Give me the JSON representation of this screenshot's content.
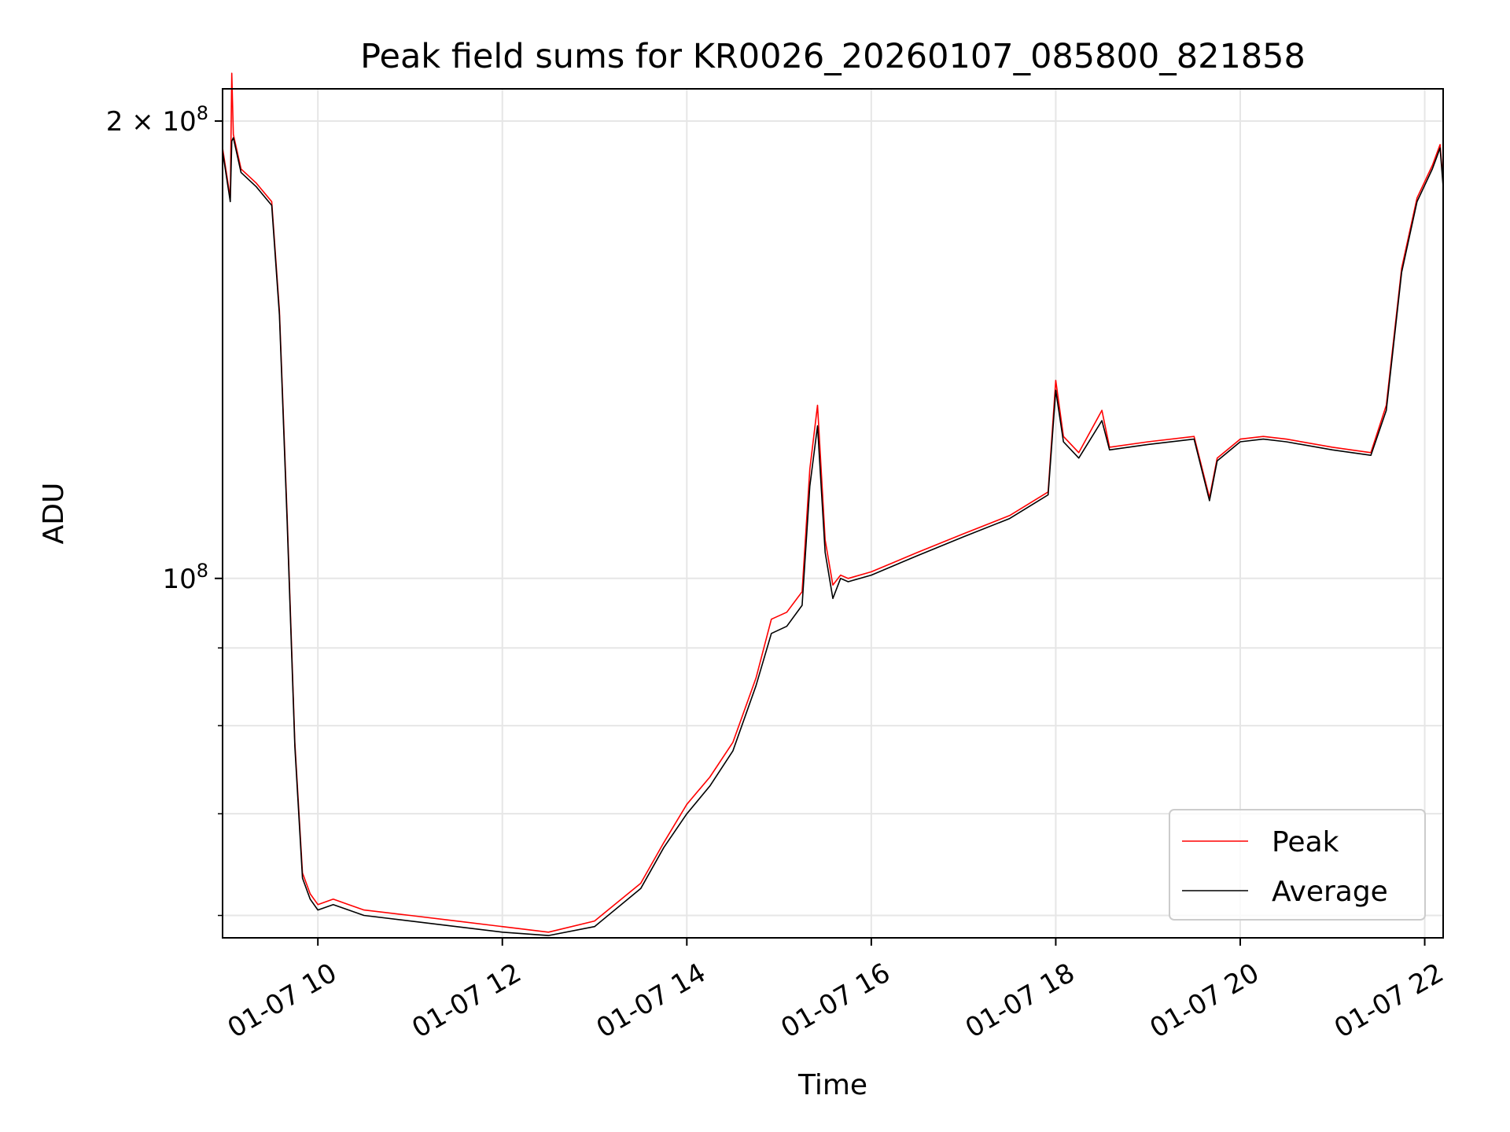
{
  "chart_data": {
    "type": "line",
    "title": "Peak field sums for KR0026_20260107_085800_821858",
    "xlabel": "Time",
    "ylabel": "ADU",
    "yscale": "log",
    "grid": true,
    "legend_placement": "lower-right",
    "xlim": [
      "2026-01-07 08:58",
      "2026-01-07 22:12"
    ],
    "ylim": [
      58000000,
      210000000
    ],
    "x_ticks": [
      "2026-01-07 10:00",
      "2026-01-07 12:00",
      "2026-01-07 14:00",
      "2026-01-07 16:00",
      "2026-01-07 18:00",
      "2026-01-07 20:00",
      "2026-01-07 22:00"
    ],
    "x_tick_labels": [
      "01-07 10",
      "01-07 12",
      "01-07 14",
      "01-07 16",
      "01-07 18",
      "01-07 20",
      "01-07 22"
    ],
    "y_major_ticks": [
      100000000,
      200000000
    ],
    "y_major_tick_labels": [
      {
        "mantissa": "",
        "exponent": "8",
        "value": 100000000
      },
      {
        "mantissa": "2 × ",
        "exponent": "8",
        "value": 200000000
      }
    ],
    "y_minor_ticks": [
      60000000,
      70000000,
      80000000,
      90000000
    ],
    "series": [
      {
        "name": "Peak",
        "color": "#ff0000",
        "x": [
          "2026-01-07 08:58",
          "2026-01-07 09:03",
          "2026-01-07 09:04",
          "2026-01-07 09:05",
          "2026-01-07 09:10",
          "2026-01-07 09:20",
          "2026-01-07 09:30",
          "2026-01-07 09:35",
          "2026-01-07 09:40",
          "2026-01-07 09:45",
          "2026-01-07 09:50",
          "2026-01-07 09:55",
          "2026-01-07 10:00",
          "2026-01-07 10:10",
          "2026-01-07 10:20",
          "2026-01-07 10:30",
          "2026-01-07 11:00",
          "2026-01-07 11:30",
          "2026-01-07 12:00",
          "2026-01-07 12:30",
          "2026-01-07 13:00",
          "2026-01-07 13:30",
          "2026-01-07 13:45",
          "2026-01-07 14:00",
          "2026-01-07 14:15",
          "2026-01-07 14:30",
          "2026-01-07 14:45",
          "2026-01-07 14:55",
          "2026-01-07 15:05",
          "2026-01-07 15:15",
          "2026-01-07 15:20",
          "2026-01-07 15:25",
          "2026-01-07 15:30",
          "2026-01-07 15:35",
          "2026-01-07 15:40",
          "2026-01-07 15:45",
          "2026-01-07 16:00",
          "2026-01-07 16:30",
          "2026-01-07 17:00",
          "2026-01-07 17:30",
          "2026-01-07 17:55",
          "2026-01-07 18:00",
          "2026-01-07 18:05",
          "2026-01-07 18:15",
          "2026-01-07 18:30",
          "2026-01-07 18:35",
          "2026-01-07 19:00",
          "2026-01-07 19:30",
          "2026-01-07 19:40",
          "2026-01-07 19:45",
          "2026-01-07 20:00",
          "2026-01-07 20:15",
          "2026-01-07 20:30",
          "2026-01-07 21:00",
          "2026-01-07 21:25",
          "2026-01-07 21:35",
          "2026-01-07 21:45",
          "2026-01-07 21:55",
          "2026-01-07 22:05",
          "2026-01-07 22:10",
          "2026-01-07 22:12"
        ],
        "y": [
          192000000,
          178000000,
          215000000,
          196000000,
          186000000,
          182000000,
          177000000,
          150000000,
          110000000,
          78000000,
          64000000,
          62000000,
          61000000,
          61500000,
          61000000,
          60500000,
          60000000,
          59500000,
          59000000,
          58500000,
          59500000,
          63000000,
          67000000,
          71000000,
          74000000,
          78000000,
          86000000,
          94000000,
          95000000,
          98000000,
          118000000,
          130000000,
          106000000,
          99000000,
          100500000,
          100000000,
          101000000,
          104000000,
          107000000,
          110000000,
          114000000,
          135000000,
          124000000,
          121000000,
          129000000,
          122000000,
          123000000,
          124000000,
          113000000,
          120000000,
          123500000,
          124000000,
          123500000,
          122000000,
          121000000,
          130000000,
          160000000,
          178000000,
          187000000,
          193000000,
          182000000
        ]
      },
      {
        "name": "Average",
        "color": "#000000",
        "x": [
          "2026-01-07 08:58",
          "2026-01-07 09:03",
          "2026-01-07 09:04",
          "2026-01-07 09:05",
          "2026-01-07 09:10",
          "2026-01-07 09:20",
          "2026-01-07 09:30",
          "2026-01-07 09:35",
          "2026-01-07 09:40",
          "2026-01-07 09:45",
          "2026-01-07 09:50",
          "2026-01-07 09:55",
          "2026-01-07 10:00",
          "2026-01-07 10:10",
          "2026-01-07 10:20",
          "2026-01-07 10:30",
          "2026-01-07 11:00",
          "2026-01-07 11:30",
          "2026-01-07 12:00",
          "2026-01-07 12:30",
          "2026-01-07 13:00",
          "2026-01-07 13:30",
          "2026-01-07 13:45",
          "2026-01-07 14:00",
          "2026-01-07 14:15",
          "2026-01-07 14:30",
          "2026-01-07 14:45",
          "2026-01-07 14:55",
          "2026-01-07 15:05",
          "2026-01-07 15:15",
          "2026-01-07 15:20",
          "2026-01-07 15:25",
          "2026-01-07 15:30",
          "2026-01-07 15:35",
          "2026-01-07 15:40",
          "2026-01-07 15:45",
          "2026-01-07 16:00",
          "2026-01-07 16:30",
          "2026-01-07 17:00",
          "2026-01-07 17:30",
          "2026-01-07 17:55",
          "2026-01-07 18:00",
          "2026-01-07 18:05",
          "2026-01-07 18:15",
          "2026-01-07 18:30",
          "2026-01-07 18:35",
          "2026-01-07 19:00",
          "2026-01-07 19:30",
          "2026-01-07 19:40",
          "2026-01-07 19:45",
          "2026-01-07 20:00",
          "2026-01-07 20:15",
          "2026-01-07 20:30",
          "2026-01-07 21:00",
          "2026-01-07 21:25",
          "2026-01-07 21:35",
          "2026-01-07 21:45",
          "2026-01-07 21:55",
          "2026-01-07 22:05",
          "2026-01-07 22:10",
          "2026-01-07 22:12"
        ],
        "y": [
          191000000,
          177000000,
          194000000,
          195000000,
          185000000,
          181000000,
          176000000,
          149000000,
          109000000,
          77500000,
          63500000,
          61500000,
          60500000,
          61000000,
          60500000,
          60000000,
          59500000,
          59000000,
          58500000,
          58200000,
          59000000,
          62500000,
          66500000,
          70000000,
          73000000,
          77000000,
          85000000,
          92000000,
          93000000,
          96000000,
          115000000,
          126000000,
          104000000,
          97000000,
          100000000,
          99500000,
          100500000,
          103500000,
          106500000,
          109500000,
          113500000,
          133000000,
          123000000,
          120000000,
          127000000,
          121500000,
          122500000,
          123500000,
          112500000,
          119500000,
          123000000,
          123500000,
          123000000,
          121500000,
          120500000,
          129000000,
          159000000,
          177000000,
          186000000,
          192000000,
          181000000
        ]
      }
    ]
  }
}
